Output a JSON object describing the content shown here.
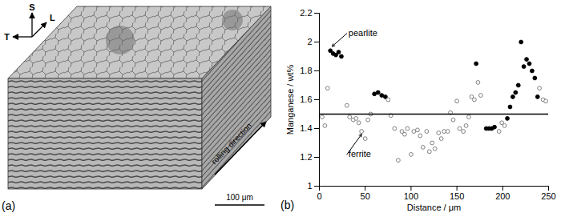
{
  "image_panel": {
    "label": "(a)",
    "axis_labels": [
      "S",
      "L",
      "T"
    ],
    "direction_label": "rolling direction",
    "scale_bar": "100 μm"
  },
  "chart_data": {
    "type": "scatter",
    "title": "(b)",
    "x_label": "Distance / μm",
    "y_label": "Manganese / wt%",
    "xlim": [
      0,
      250
    ],
    "xticks": [
      0,
      50,
      100,
      150,
      200,
      250
    ],
    "ylim": [
      1,
      2.2
    ],
    "yticks": [
      1,
      1.2,
      1.4,
      1.6,
      1.8,
      2,
      2.2
    ],
    "grid": false,
    "series": [
      {
        "name": "pearlite",
        "type": "scatter",
        "color": "#000000",
        "marker": "filled_circle",
        "x": [
          12,
          15,
          18,
          21,
          24,
          60,
          64,
          68,
          72,
          171,
          182,
          185,
          188,
          191,
          205,
          208,
          211,
          214,
          217,
          220,
          223,
          226,
          229,
          232,
          235,
          238
        ],
        "values": [
          1.94,
          1.92,
          1.91,
          1.93,
          1.9,
          1.64,
          1.65,
          1.63,
          1.62,
          1.85,
          1.4,
          1.4,
          1.4,
          1.41,
          1.47,
          1.55,
          1.62,
          1.65,
          1.7,
          2.0,
          1.83,
          1.88,
          1.85,
          1.8,
          1.75,
          1.62
        ]
      },
      {
        "name": "ferrite",
        "type": "scatter",
        "color": "#808080",
        "marker": "open_circle",
        "x": [
          3,
          6,
          9,
          30,
          33,
          37,
          40,
          43,
          46,
          50,
          53,
          56,
          75,
          78,
          82,
          86,
          90,
          93,
          96,
          100,
          103,
          107,
          110,
          113,
          117,
          120,
          123,
          126,
          130,
          133,
          136,
          140,
          143,
          146,
          150,
          153,
          157,
          160,
          163,
          166,
          169,
          173,
          176,
          196,
          199,
          202,
          240,
          244,
          247
        ],
        "values": [
          1.48,
          1.42,
          1.68,
          1.56,
          1.48,
          1.46,
          1.47,
          1.44,
          1.38,
          1.33,
          1.46,
          1.5,
          1.6,
          1.49,
          1.4,
          1.18,
          1.38,
          1.36,
          1.4,
          1.22,
          1.38,
          1.39,
          1.35,
          1.27,
          1.38,
          1.24,
          1.3,
          1.26,
          1.37,
          1.33,
          1.38,
          1.38,
          1.51,
          1.46,
          1.59,
          1.4,
          1.38,
          1.42,
          1.48,
          1.62,
          1.6,
          1.72,
          1.63,
          1.38,
          1.44,
          1.42,
          1.68,
          1.6,
          1.59
        ]
      },
      {
        "type": "line",
        "color": "#000000",
        "line_style": "solid",
        "x": [
          0,
          250
        ],
        "values": [
          1.5,
          1.5
        ]
      }
    ],
    "annotations": [
      {
        "text": "pearlite",
        "x": 30,
        "y": 2.06,
        "arrow_to": [
          14,
          1.97
        ]
      },
      {
        "text": "ferrite",
        "x": 30,
        "y": 1.22,
        "arrow_to": [
          46,
          1.36
        ]
      }
    ]
  }
}
